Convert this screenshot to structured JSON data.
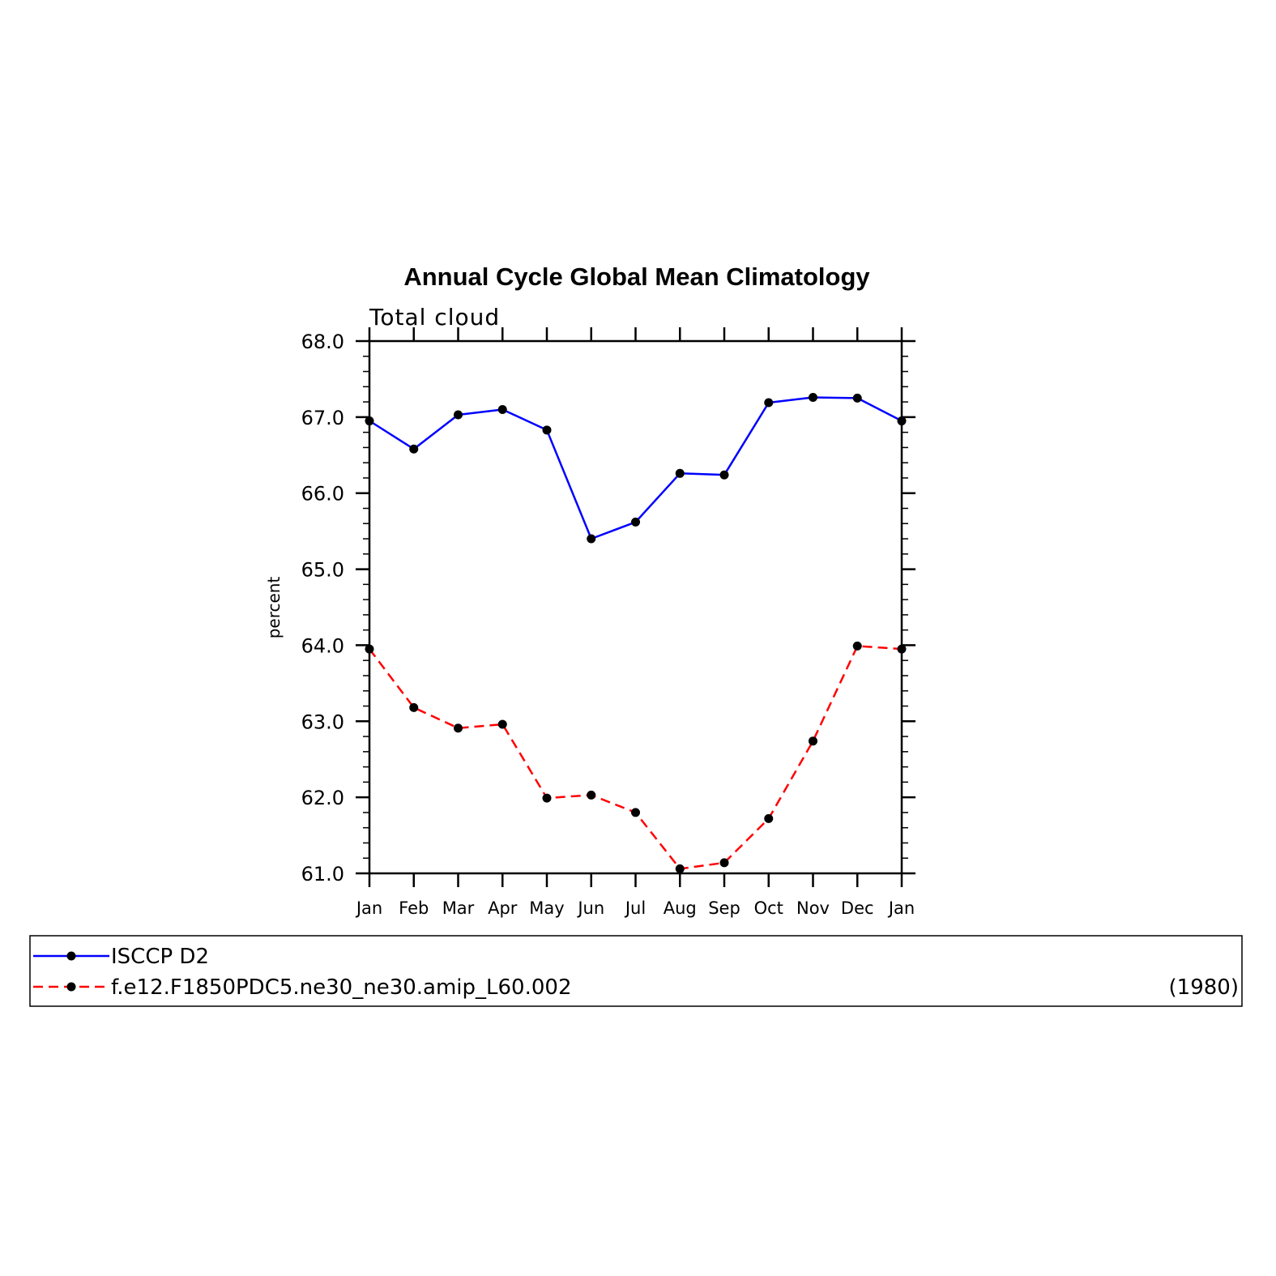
{
  "chart_data": {
    "type": "line",
    "title": "Annual Cycle Global Mean Climatology",
    "subtitle": "Total cloud",
    "xlabel": "",
    "ylabel": "percent",
    "categories": [
      "Jan",
      "Feb",
      "Mar",
      "Apr",
      "May",
      "Jun",
      "Jul",
      "Aug",
      "Sep",
      "Oct",
      "Nov",
      "Dec",
      "Jan"
    ],
    "ylim": [
      61.0,
      68.0
    ],
    "yticks": [
      "61.0",
      "62.0",
      "63.0",
      "64.0",
      "65.0",
      "66.0",
      "67.0",
      "68.0"
    ],
    "grid": false,
    "legend_position": "bottom",
    "series": [
      {
        "name": "ISCCP D2",
        "color": "#0000ff",
        "dash": "solid",
        "values": [
          66.95,
          66.58,
          67.03,
          67.1,
          66.83,
          65.4,
          65.62,
          66.26,
          66.24,
          67.19,
          67.26,
          67.25,
          66.95
        ]
      },
      {
        "name": "f.e12.F1850PDC5.ne30_ne30.amip_L60.002",
        "color": "#ff0000",
        "dash": "dashed",
        "values": [
          63.95,
          63.18,
          62.91,
          62.96,
          61.99,
          62.03,
          61.8,
          61.06,
          61.14,
          61.72,
          62.74,
          63.99,
          63.95
        ]
      }
    ],
    "legend_note": "(1980)"
  }
}
